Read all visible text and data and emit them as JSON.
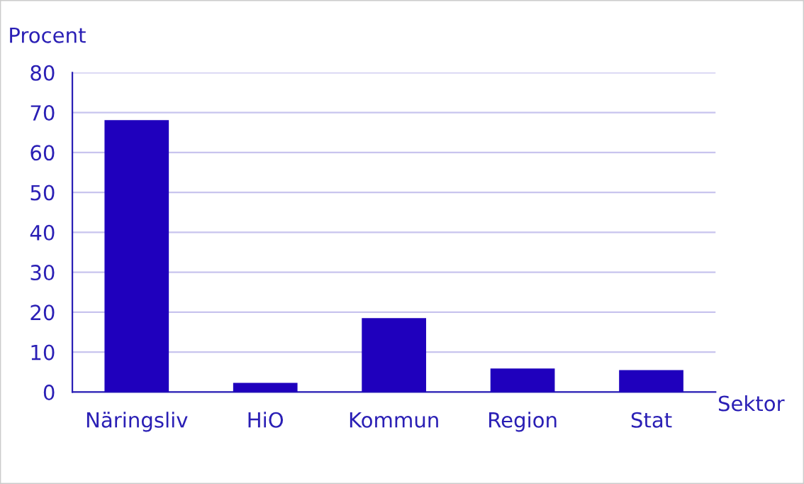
{
  "chart_data": {
    "type": "bar",
    "ylabel": "Procent",
    "xlabel": "Sektor",
    "categories": [
      "Näringsliv",
      "HiO",
      "Kommun",
      "Region",
      "Stat"
    ],
    "values": [
      68.1,
      2.3,
      18.5,
      5.9,
      5.5
    ],
    "color": "#1f00bd",
    "ylim": [
      0,
      80
    ],
    "yticks": [
      0,
      10,
      20,
      30,
      40,
      50,
      60,
      70,
      80
    ],
    "grid": "y"
  }
}
